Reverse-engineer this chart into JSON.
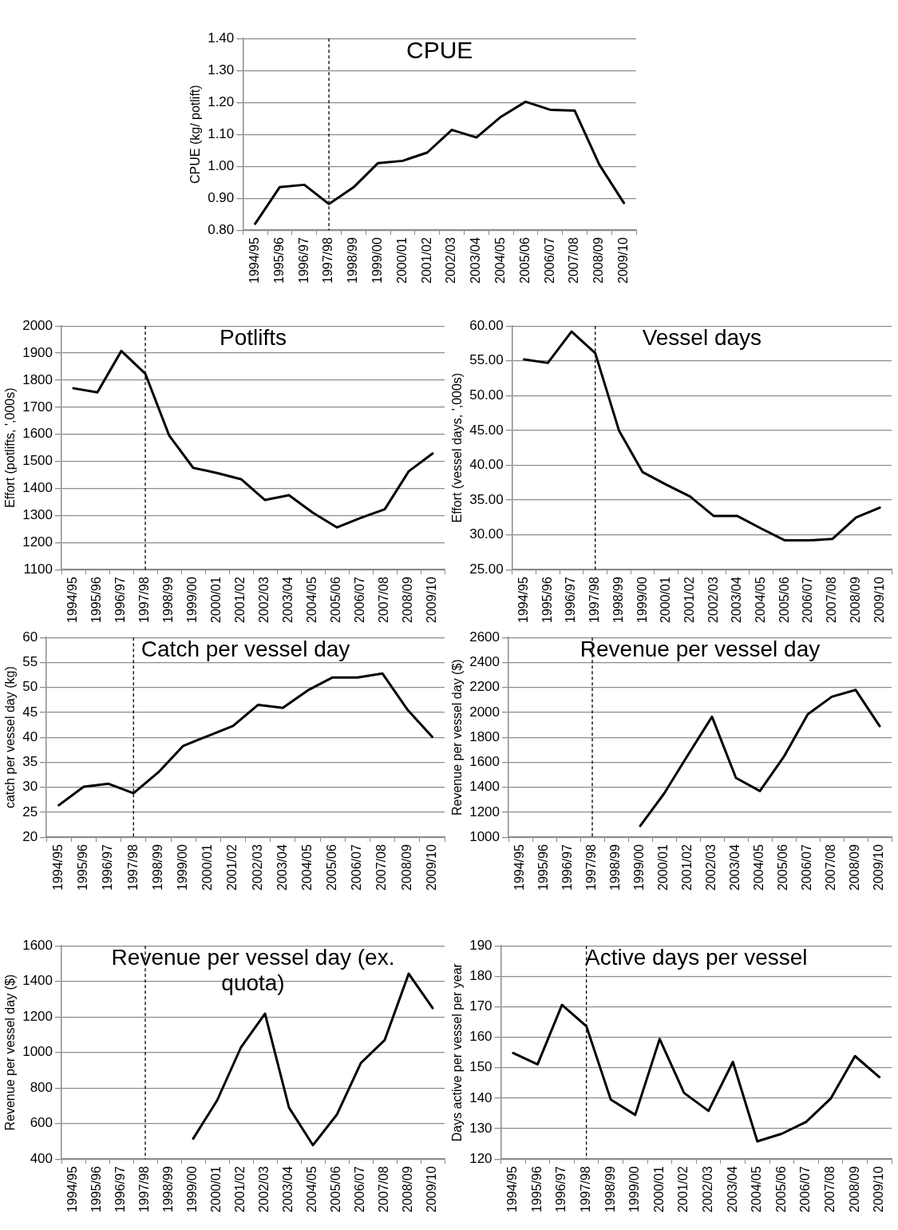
{
  "chart_data": [
    {
      "type": "line",
      "title": "CPUE",
      "ylabel": "CPUE (kg/ potlift)",
      "categories": [
        "1994/95",
        "1995/96",
        "1996/97",
        "1997/98",
        "1998/99",
        "1999/00",
        "2000/01",
        "2001/02",
        "2002/03",
        "2003/04",
        "2004/05",
        "2005/06",
        "2006/07",
        "2007/08",
        "2008/09",
        "2009/10"
      ],
      "color": "#000000",
      "values": [
        0.82,
        0.935,
        0.942,
        0.882,
        0.934,
        1.01,
        1.017,
        1.043,
        1.114,
        1.09,
        1.155,
        1.202,
        1.177,
        1.174,
        1.005,
        0.885
      ],
      "ylim": [
        0.8,
        1.4
      ],
      "yticks": [
        {
          "value": 0.8,
          "label": "0.80"
        },
        {
          "value": 0.9,
          "label": "0.90"
        },
        {
          "value": 1.0,
          "label": "1.00"
        },
        {
          "value": 1.1,
          "label": "1.10"
        },
        {
          "value": 1.2,
          "label": "1.20"
        },
        {
          "value": 1.3,
          "label": "1.30"
        },
        {
          "value": 1.4,
          "label": "1.40"
        }
      ],
      "grid": "y",
      "ref_lines": [
        {
          "axis": "x",
          "value": "1997/98",
          "color": "#000000",
          "line_style": "dashed"
        }
      ]
    },
    {
      "type": "line",
      "title": "Potlifts",
      "ylabel": "Effort (potlifts, ',000s)",
      "categories": [
        "1994/95",
        "1995/96",
        "1996/97",
        "1997/98",
        "1998/99",
        "1999/00",
        "2000/01",
        "2001/02",
        "2002/03",
        "2003/04",
        "2004/05",
        "2005/06",
        "2006/07",
        "2007/08",
        "2008/09",
        "2009/10"
      ],
      "color": "#000000",
      "values": [
        1770,
        1755,
        1908,
        1824,
        1595,
        1476,
        1457,
        1434,
        1357,
        1375,
        1310,
        1256,
        1291,
        1323,
        1463,
        1529
      ],
      "ylim": [
        1100,
        2000
      ],
      "yticks": [
        1100,
        1200,
        1300,
        1400,
        1500,
        1600,
        1700,
        1800,
        1900,
        2000
      ],
      "grid": "y",
      "ref_lines": [
        {
          "axis": "x",
          "value": "1997/98",
          "color": "#000000",
          "line_style": "dashed"
        }
      ]
    },
    {
      "type": "line",
      "title": "Vessel days",
      "ylabel": "Effort (vessel days, ',000s)",
      "categories": [
        "1994/95",
        "1995/96",
        "1996/97",
        "1997/98",
        "1998/99",
        "1999/00",
        "2000/01",
        "2001/02",
        "2002/03",
        "2003/04",
        "2004/05",
        "2005/06",
        "2006/07",
        "2007/08",
        "2008/09",
        "2009/10"
      ],
      "color": "#000000",
      "values": [
        55.2,
        54.7,
        59.2,
        56.1,
        45.0,
        39.0,
        37.2,
        35.5,
        32.7,
        32.7,
        30.9,
        29.2,
        29.2,
        29.4,
        32.5,
        33.9
      ],
      "ylim": [
        25,
        60
      ],
      "yticks": [
        {
          "value": 25,
          "label": "25.00"
        },
        {
          "value": 30,
          "label": "30.00"
        },
        {
          "value": 35,
          "label": "35.00"
        },
        {
          "value": 40,
          "label": "40.00"
        },
        {
          "value": 45,
          "label": "45.00"
        },
        {
          "value": 50,
          "label": "50.00"
        },
        {
          "value": 55,
          "label": "55.00"
        },
        {
          "value": 60,
          "label": "60.00"
        }
      ],
      "grid": "y",
      "ref_lines": [
        {
          "axis": "x",
          "value": "1997/98",
          "color": "#000000",
          "line_style": "dashed"
        }
      ]
    },
    {
      "type": "line",
      "title": "Catch per vessel day",
      "ylabel": "catch per vessel day (kg)",
      "categories": [
        "1994/95",
        "1995/96",
        "1996/97",
        "1997/98",
        "1998/99",
        "1999/00",
        "2000/01",
        "2001/02",
        "2002/03",
        "2003/04",
        "2004/05",
        "2005/06",
        "2006/07",
        "2007/08",
        "2008/09",
        "2009/10"
      ],
      "color": "#000000",
      "values": [
        26.4,
        30.1,
        30.7,
        28.8,
        33.0,
        38.3,
        40.3,
        42.3,
        46.5,
        45.9,
        49.4,
        52.0,
        52.0,
        52.8,
        45.6,
        40.1
      ],
      "ylim": [
        20,
        60
      ],
      "yticks": [
        20,
        25,
        30,
        35,
        40,
        45,
        50,
        55,
        60
      ],
      "grid": "y",
      "ref_lines": [
        {
          "axis": "x",
          "value": "1997/98",
          "color": "#000000",
          "line_style": "dashed"
        }
      ]
    },
    {
      "type": "line",
      "title": "Revenue per vessel day",
      "ylabel": "Revenue per vessel day ($)",
      "categories": [
        "1994/95",
        "1995/96",
        "1996/97",
        "1997/98",
        "1998/99",
        "1999/00",
        "2000/01",
        "2001/02",
        "2002/03",
        "2003/04",
        "2004/05",
        "2005/06",
        "2006/07",
        "2007/08",
        "2008/09",
        "2009/10"
      ],
      "color": "#000000",
      "values": [
        null,
        null,
        null,
        null,
        null,
        1090,
        1350,
        1660,
        1965,
        1475,
        1370,
        1645,
        1985,
        2125,
        2180,
        1890
      ],
      "ylim": [
        1000,
        2600
      ],
      "yticks": [
        1000,
        1200,
        1400,
        1600,
        1800,
        2000,
        2200,
        2400,
        2600
      ],
      "grid": "y",
      "ref_lines": [
        {
          "axis": "x",
          "value": "1997/98",
          "color": "#000000",
          "line_style": "dashed"
        }
      ]
    },
    {
      "type": "line",
      "title": "Revenue per vessel day (ex. quota)",
      "ylabel": "Revenue per vessel day ($)",
      "categories": [
        "1994/95",
        "1995/96",
        "1996/97",
        "1997/98",
        "1998/99",
        "1999/00",
        "2000/01",
        "2001/02",
        "2002/03",
        "2003/04",
        "2004/05",
        "2005/06",
        "2006/07",
        "2007/08",
        "2008/09",
        "2009/10"
      ],
      "color": "#000000",
      "values": [
        null,
        null,
        null,
        null,
        null,
        515,
        730,
        1030,
        1218,
        690,
        478,
        650,
        940,
        1070,
        1443,
        1250
      ],
      "ylim": [
        400,
        1600
      ],
      "yticks": [
        400,
        600,
        800,
        1000,
        1200,
        1400,
        1600
      ],
      "grid": "y",
      "ref_lines": [
        {
          "axis": "x",
          "value": "1997/98",
          "color": "#000000",
          "line_style": "dashed"
        }
      ]
    },
    {
      "type": "line",
      "title": "Active days per vessel",
      "ylabel": "Days active per vessel per year",
      "categories": [
        "1994/95",
        "1995/96",
        "1996/97",
        "1997/98",
        "1998/99",
        "1999/00",
        "2000/01",
        "2001/02",
        "2002/03",
        "2003/04",
        "2004/05",
        "2005/06",
        "2006/07",
        "2007/08",
        "2008/09",
        "2009/10"
      ],
      "color": "#000000",
      "values": [
        154.8,
        151.1,
        170.6,
        163.6,
        139.5,
        134.5,
        159.4,
        141.7,
        135.8,
        151.9,
        125.8,
        128.3,
        132.2,
        139.8,
        153.8,
        146.9
      ],
      "ylim": [
        120,
        190
      ],
      "yticks": [
        120,
        130,
        140,
        150,
        160,
        170,
        180,
        190
      ],
      "grid": "y",
      "ref_lines": [
        {
          "axis": "x",
          "value": "1997/98",
          "color": "#000000",
          "line_style": "dashed"
        }
      ]
    }
  ]
}
